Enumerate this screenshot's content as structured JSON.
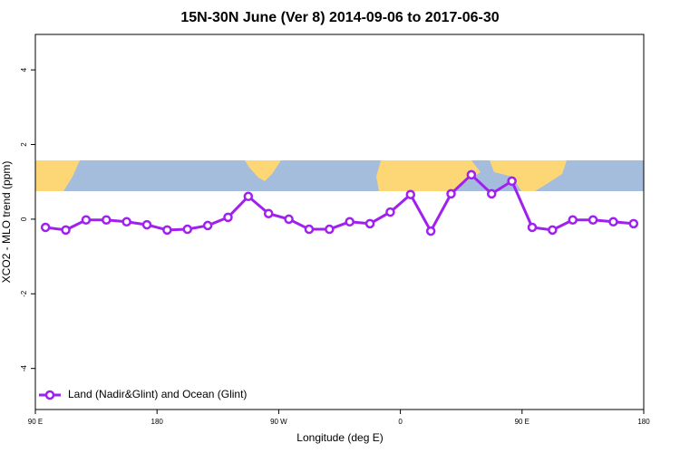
{
  "chart_data": {
    "type": "line",
    "title": "15N-30N June (Ver 8)   2014-09-06 to 2017-06-30",
    "x_label": "Longitude (deg E)",
    "y_label": "XCO2 - MLO trend (ppm)",
    "x": [
      97.5,
      112.5,
      127.5,
      142.5,
      157.5,
      172.5,
      187.5,
      202.5,
      217.5,
      232.5,
      247.5,
      262.5,
      277.5,
      292.5,
      307.5,
      322.5,
      337.5,
      352.5,
      367.5,
      382.5,
      397.5,
      412.5,
      427.5,
      442.5,
      457.5,
      472.5,
      487.5,
      502.5,
      517.5,
      532.5
    ],
    "series": [
      {
        "name": "Land (Nadir&Glint) and Ocean (Glint)",
        "color": "#a020f0",
        "values": [
          -0.22,
          -0.29,
          -0.02,
          -0.02,
          -0.07,
          -0.15,
          -0.29,
          -0.27,
          -0.17,
          0.05,
          0.61,
          0.15,
          0.0,
          -0.27,
          -0.27,
          -0.07,
          -0.12,
          0.19,
          0.66,
          -0.32,
          0.68,
          1.19,
          0.68,
          1.02,
          -0.22,
          -0.29,
          -0.02,
          -0.02,
          -0.07,
          -0.12
        ]
      }
    ],
    "xlim": [
      90,
      540
    ],
    "xticks": [
      {
        "value": 90,
        "label": "90 E"
      },
      180,
      {
        "value": 270,
        "label": "90 W"
      },
      {
        "value": 360,
        "label": "0"
      },
      {
        "value": 450,
        "label": "90 E"
      },
      {
        "value": 540,
        "label": "180"
      }
    ],
    "ylim": [
      -5.1,
      4.95
    ],
    "yticks": [
      -4,
      -2,
      0,
      2,
      4
    ],
    "legend": "bottom-left"
  }
}
